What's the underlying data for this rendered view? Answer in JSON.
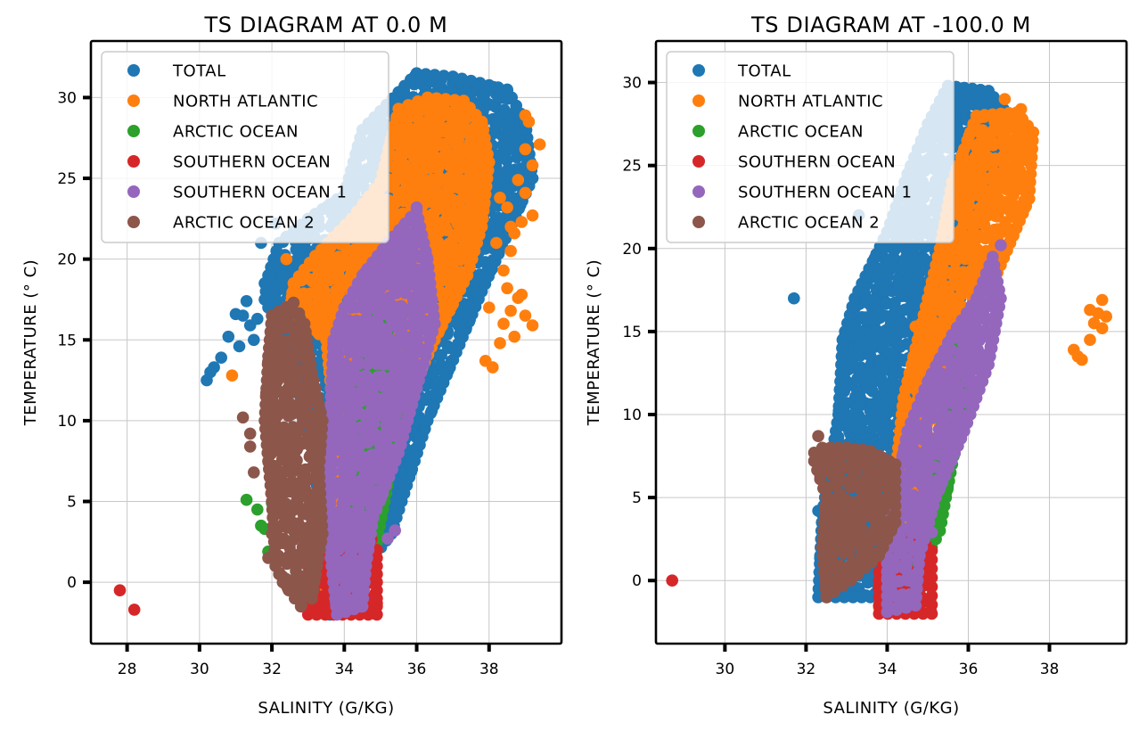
{
  "chart_data": [
    {
      "type": "scatter",
      "title": "TS DIAGRAM AT 0.0 M",
      "xlabel": "SALINITY (G/KG)",
      "ylabel": "TEMPERATURE (° C)",
      "xlim": [
        27,
        40
      ],
      "ylim": [
        -3.8,
        33.5
      ],
      "xticks": [
        28,
        30,
        32,
        34,
        36,
        38
      ],
      "yticks": [
        0,
        5,
        10,
        15,
        20,
        25,
        30
      ],
      "grid": true,
      "legend_position": "top-left",
      "series": [
        {
          "name": "TOTAL",
          "color": "#1f77b4",
          "envelope": [
            [
              33.6,
              -2
            ],
            [
              35.3,
              3
            ],
            [
              36.3,
              10
            ],
            [
              37.8,
              18
            ],
            [
              39.2,
              25
            ],
            [
              39.0,
              28.5
            ],
            [
              38.5,
              30.5
            ],
            [
              37.0,
              31.3
            ],
            [
              36.0,
              31.5
            ],
            [
              34.5,
              28
            ],
            [
              34.0,
              24
            ],
            [
              33.0,
              22.5
            ],
            [
              32.2,
              21
            ],
            [
              31.9,
              19
            ],
            [
              31.8,
              17.5
            ],
            [
              32.5,
              14
            ],
            [
              33.2,
              8
            ],
            [
              33.3,
              3
            ],
            [
              33.3,
              -1.5
            ]
          ],
          "extra_points": [
            [
              30.2,
              12.5
            ],
            [
              30.4,
              13.3
            ],
            [
              30.6,
              13.9
            ],
            [
              30.8,
              15.2
            ],
            [
              31.0,
              16.6
            ],
            [
              31.3,
              17.4
            ],
            [
              31.4,
              15.9
            ],
            [
              31.1,
              14.6
            ],
            [
              30.3,
              13.0
            ],
            [
              31.7,
              21
            ],
            [
              31.8,
              18.5
            ],
            [
              31.6,
              16.3
            ],
            [
              32.1,
              22.2
            ],
            [
              31.2,
              16.5
            ],
            [
              31.5,
              15.0
            ]
          ]
        },
        {
          "name": "NORTH ATLANTIC",
          "color": "#ff7f0e",
          "envelope": [
            [
              33.3,
              -1
            ],
            [
              34.8,
              5
            ],
            [
              35.5,
              10
            ],
            [
              36.5,
              15
            ],
            [
              37.4,
              19
            ],
            [
              37.8,
              22
            ],
            [
              38.0,
              26
            ],
            [
              37.8,
              28.5
            ],
            [
              37.3,
              29.8
            ],
            [
              36.3,
              30.0
            ],
            [
              35.5,
              29.3
            ],
            [
              35.0,
              24.8
            ],
            [
              34.2,
              22.5
            ],
            [
              33.2,
              20.2
            ],
            [
              32.6,
              18.5
            ],
            [
              32.5,
              16.8
            ],
            [
              33.5,
              15.0
            ],
            [
              33.9,
              6
            ],
            [
              33.8,
              1
            ]
          ],
          "extra_points": [
            [
              37.9,
              13.7
            ],
            [
              38.1,
              13.3
            ],
            [
              38.3,
              14.8
            ],
            [
              38.4,
              16.0
            ],
            [
              38.6,
              16.8
            ],
            [
              38.8,
              17.6
            ],
            [
              39.0,
              16.5
            ],
            [
              38.9,
              17.8
            ],
            [
              38.7,
              15.2
            ],
            [
              39.2,
              15.9
            ],
            [
              38.4,
              19.3
            ],
            [
              38.6,
              20.5
            ],
            [
              38.5,
              18.2
            ],
            [
              38.7,
              21.6
            ],
            [
              38.9,
              22.3
            ],
            [
              38.5,
              23.2
            ],
            [
              39.0,
              24.1
            ],
            [
              38.8,
              24.9
            ],
            [
              39.2,
              25.8
            ],
            [
              39.0,
              26.8
            ],
            [
              39.4,
              27.1
            ],
            [
              39.1,
              28.5
            ],
            [
              39.0,
              28.9
            ],
            [
              38.6,
              22.0
            ],
            [
              38.2,
              21.0
            ],
            [
              38.3,
              23.8
            ],
            [
              39.2,
              22.7
            ],
            [
              38.0,
              17.0
            ],
            [
              30.9,
              12.8
            ],
            [
              33.8,
              14.7
            ],
            [
              32.4,
              20.0
            ]
          ]
        },
        {
          "name": "ARCTIC OCEAN",
          "color": "#2ca02c",
          "envelope": [
            [
              34.0,
              -1.5
            ],
            [
              34.9,
              2.5
            ],
            [
              35.2,
              6
            ],
            [
              35.5,
              10
            ],
            [
              35.5,
              14
            ],
            [
              35.0,
              16.5
            ],
            [
              34.5,
              16
            ],
            [
              34.2,
              10
            ],
            [
              34.1,
              3
            ]
          ],
          "extra_points": [
            [
              31.3,
              5.1
            ],
            [
              31.6,
              4.5
            ],
            [
              31.7,
              3.5
            ],
            [
              31.8,
              3.3
            ],
            [
              31.9,
              1.9
            ],
            [
              32.0,
              4.9
            ]
          ]
        },
        {
          "name": "SOUTHERN OCEAN",
          "color": "#d62728",
          "envelope": [
            [
              33.0,
              -2
            ],
            [
              34.9,
              -2
            ],
            [
              34.9,
              2
            ],
            [
              34.6,
              3.3
            ],
            [
              33.2,
              3.2
            ],
            [
              33.0,
              1
            ]
          ],
          "extra_points": [
            [
              27.8,
              -0.5
            ],
            [
              28.2,
              -1.7
            ],
            [
              33.2,
              1.9
            ],
            [
              34.9,
              -1.3
            ],
            [
              34.3,
              -1.1
            ]
          ]
        },
        {
          "name": "SOUTHERN OCEAN 1",
          "color": "#9467bd",
          "envelope": [
            [
              33.8,
              -2
            ],
            [
              34.5,
              -1.5
            ],
            [
              34.6,
              1
            ],
            [
              34.8,
              4
            ],
            [
              35.5,
              8
            ],
            [
              36.0,
              12
            ],
            [
              36.5,
              16
            ],
            [
              36.3,
              20
            ],
            [
              36.0,
              23
            ],
            [
              35.2,
              21
            ],
            [
              34.5,
              19
            ],
            [
              34.0,
              17
            ],
            [
              33.7,
              15
            ],
            [
              33.6,
              10
            ],
            [
              33.5,
              4
            ]
          ],
          "extra_points": [
            [
              35.2,
              2.7
            ],
            [
              35.4,
              3.2
            ],
            [
              33.7,
              14.8
            ],
            [
              35.9,
              22.5
            ],
            [
              36.0,
              23.2
            ]
          ]
        },
        {
          "name": "ARCTIC OCEAN 2",
          "color": "#8c564b",
          "envelope": [
            [
              32.3,
              0
            ],
            [
              32.8,
              -1.5
            ],
            [
              33.1,
              -1
            ],
            [
              33.4,
              3
            ],
            [
              33.3,
              7
            ],
            [
              33.4,
              10
            ],
            [
              33.1,
              13
            ],
            [
              32.9,
              16
            ],
            [
              32.6,
              17.3
            ],
            [
              32.0,
              16.5
            ],
            [
              31.9,
              14
            ],
            [
              31.8,
              10
            ],
            [
              32.0,
              5
            ],
            [
              32.1,
              1
            ]
          ],
          "extra_points": [
            [
              31.2,
              10.2
            ],
            [
              31.4,
              9.2
            ],
            [
              31.4,
              8.4
            ],
            [
              31.5,
              6.8
            ],
            [
              31.9,
              1.5
            ],
            [
              32.4,
              0.2
            ],
            [
              32.0,
              3.0
            ]
          ]
        }
      ]
    },
    {
      "type": "scatter",
      "title": "TS DIAGRAM AT -100.0 M",
      "xlabel": "SALINITY (G/KG)",
      "ylabel": "TEMPERATURE (° C)",
      "xlim": [
        28.3,
        39.9
      ],
      "ylim": [
        -3.8,
        32.5
      ],
      "xticks": [
        30,
        32,
        34,
        36,
        38
      ],
      "yticks": [
        0,
        5,
        10,
        15,
        20,
        25,
        30
      ],
      "grid": true,
      "legend_position": "top-left",
      "series": [
        {
          "name": "TOTAL",
          "color": "#1f77b4",
          "envelope": [
            [
              32.3,
              -1
            ],
            [
              32.4,
              4
            ],
            [
              32.8,
              10
            ],
            [
              32.9,
              14.5
            ],
            [
              33.2,
              17
            ],
            [
              34.0,
              21
            ],
            [
              34.5,
              24.5
            ],
            [
              35.0,
              27.5
            ],
            [
              35.5,
              29.8
            ],
            [
              36.5,
              29.5
            ],
            [
              37.0,
              28.0
            ],
            [
              36.3,
              22
            ],
            [
              35.8,
              17
            ],
            [
              35.3,
              12
            ],
            [
              34.6,
              7
            ],
            [
              34.2,
              2
            ],
            [
              33.8,
              -1
            ]
          ],
          "extra_points": [
            [
              31.7,
              17
            ],
            [
              32.3,
              4.2
            ],
            [
              33.3,
              22.0
            ]
          ]
        },
        {
          "name": "NORTH ATLANTIC",
          "color": "#ff7f0e",
          "envelope": [
            [
              33.8,
              -1.6
            ],
            [
              34.5,
              2
            ],
            [
              35.2,
              8
            ],
            [
              35.9,
              14
            ],
            [
              36.8,
              19
            ],
            [
              37.5,
              23
            ],
            [
              37.6,
              27
            ],
            [
              37.2,
              28.2
            ],
            [
              36.2,
              28.0
            ],
            [
              35.6,
              24
            ],
            [
              35.3,
              20
            ],
            [
              34.9,
              16
            ],
            [
              34.4,
              11
            ],
            [
              34.1,
              4
            ],
            [
              33.9,
              1
            ]
          ],
          "extra_points": [
            [
              38.7,
              13.5
            ],
            [
              38.8,
              13.3
            ],
            [
              38.6,
              13.9
            ],
            [
              39.0,
              14.5
            ],
            [
              39.1,
              15.5
            ],
            [
              39.2,
              16.1
            ],
            [
              39.0,
              16.3
            ],
            [
              39.3,
              15.2
            ],
            [
              39.4,
              15.9
            ],
            [
              39.3,
              16.9
            ],
            [
              34.7,
              15.3
            ],
            [
              36.9,
              29.0
            ],
            [
              37.3,
              28.4
            ]
          ]
        },
        {
          "name": "ARCTIC OCEAN",
          "color": "#2ca02c",
          "envelope": [
            [
              34.8,
              0.5
            ],
            [
              35.3,
              3
            ],
            [
              35.6,
              7
            ],
            [
              35.9,
              11
            ],
            [
              36.1,
              15
            ],
            [
              36.0,
              16
            ],
            [
              35.7,
              14
            ],
            [
              35.4,
              10
            ],
            [
              35.0,
              5
            ],
            [
              34.7,
              1.5
            ]
          ],
          "extra_points": [
            [
              36.0,
              12.0
            ]
          ]
        },
        {
          "name": "SOUTHERN OCEAN",
          "color": "#d62728",
          "envelope": [
            [
              33.8,
              -2
            ],
            [
              35.1,
              -2
            ],
            [
              35.1,
              1.8
            ],
            [
              34.8,
              2.5
            ],
            [
              34.0,
              2.3
            ],
            [
              33.8,
              0.5
            ]
          ],
          "extra_points": [
            [
              28.7,
              0
            ],
            [
              35.0,
              -0.2
            ],
            [
              34.8,
              2.9
            ]
          ]
        },
        {
          "name": "SOUTHERN OCEAN 1",
          "color": "#9467bd",
          "envelope": [
            [
              34.0,
              -1.9
            ],
            [
              34.7,
              -1.5
            ],
            [
              34.8,
              1.5
            ],
            [
              35.2,
              5
            ],
            [
              35.9,
              9
            ],
            [
              36.5,
              13
            ],
            [
              36.8,
              17
            ],
            [
              36.6,
              19.5
            ],
            [
              36.2,
              17
            ],
            [
              35.6,
              14.8
            ],
            [
              35.0,
              12
            ],
            [
              34.5,
              9
            ],
            [
              34.2,
              5.5
            ],
            [
              34.0,
              2
            ]
          ],
          "extra_points": [
            [
              36.8,
              20.2
            ],
            [
              35.1,
              2.9
            ],
            [
              36.1,
              14.2
            ]
          ]
        },
        {
          "name": "ARCTIC OCEAN 2",
          "color": "#8c564b",
          "envelope": [
            [
              32.5,
              -1
            ],
            [
              33.1,
              0
            ],
            [
              33.8,
              1.5
            ],
            [
              34.2,
              3.5
            ],
            [
              34.2,
              7
            ],
            [
              33.6,
              7.8
            ],
            [
              33.0,
              8
            ],
            [
              32.4,
              8
            ],
            [
              32.2,
              7.2
            ],
            [
              32.5,
              5
            ],
            [
              32.4,
              2
            ]
          ],
          "extra_points": [
            [
              32.2,
              7.7
            ],
            [
              32.3,
              8.7
            ],
            [
              32.5,
              -0.9
            ]
          ]
        }
      ]
    }
  ]
}
